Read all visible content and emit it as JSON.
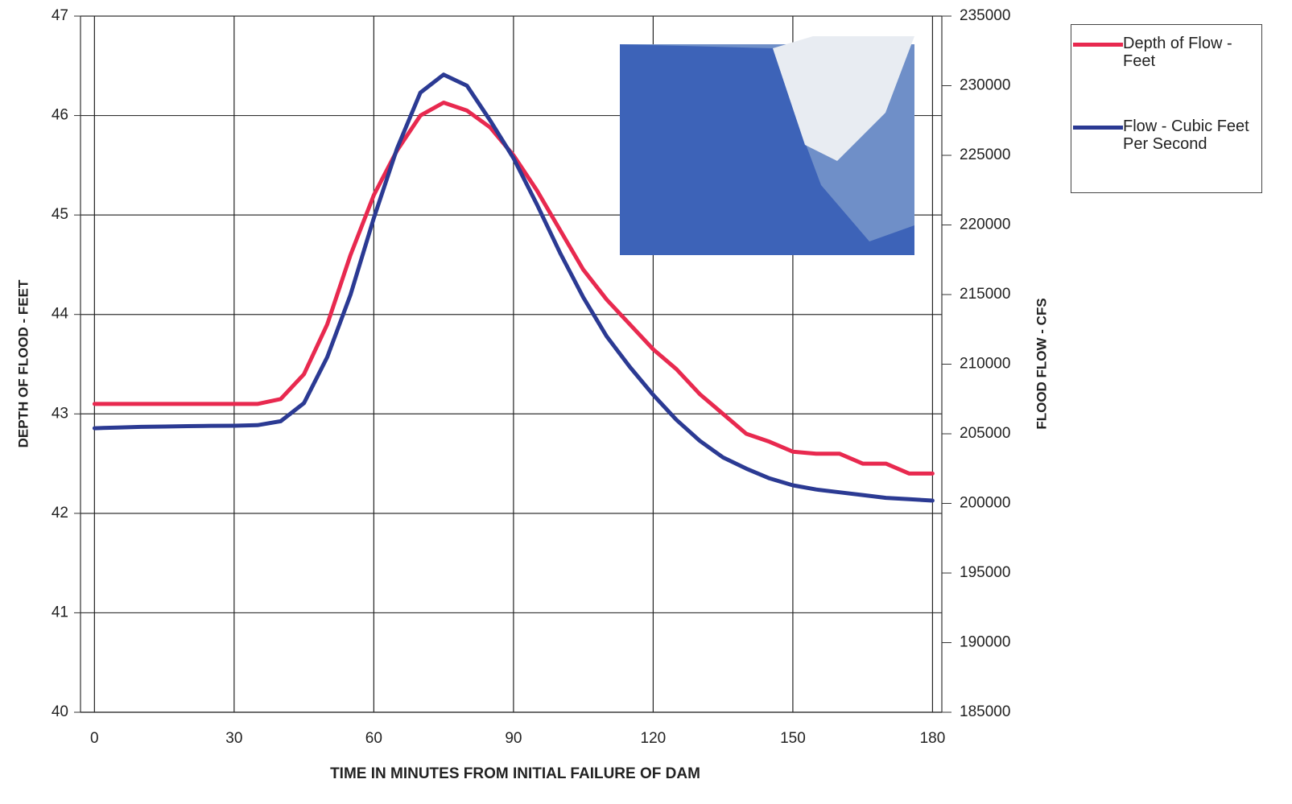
{
  "chart_data": {
    "type": "line",
    "xlabel": "TIME IN MINUTES FROM INITIAL FAILURE OF DAM",
    "ylabel": "DEPTH OF FLOOD - FEET",
    "y2label": "FLOOD FLOW - CFS",
    "x": [
      0,
      5,
      10,
      15,
      20,
      25,
      30,
      35,
      40,
      45,
      50,
      55,
      60,
      65,
      70,
      75,
      80,
      85,
      90,
      95,
      100,
      105,
      110,
      115,
      120,
      125,
      130,
      135,
      140,
      145,
      150,
      155,
      160,
      165,
      170,
      175,
      180
    ],
    "xlim": [
      -3,
      182
    ],
    "xticks": [
      0,
      30,
      60,
      90,
      120,
      150,
      180
    ],
    "ylim": [
      40,
      47
    ],
    "yticks": [
      40,
      41,
      42,
      43,
      44,
      45,
      46,
      47
    ],
    "y2lim": [
      185000,
      235000
    ],
    "y2ticks": [
      185000,
      190000,
      195000,
      200000,
      205000,
      210000,
      215000,
      220000,
      225000,
      230000,
      235000
    ],
    "grid": true,
    "legend": "right",
    "series": [
      {
        "name": "Depth of Flow - Feet",
        "color": "#e8294f",
        "values": [
          43.1,
          43.1,
          43.1,
          43.1,
          43.1,
          43.1,
          43.1,
          43.1,
          43.15,
          43.4,
          43.9,
          44.6,
          45.2,
          45.65,
          46.0,
          46.13,
          46.05,
          45.88,
          45.6,
          45.25,
          44.85,
          44.45,
          44.15,
          43.9,
          43.65,
          43.45,
          43.2,
          43.0,
          42.8,
          42.72,
          42.62,
          42.6,
          42.6,
          42.5,
          42.5,
          42.4,
          42.4
        ]
      },
      {
        "name": "Flow - Cubic Feet Per Second",
        "color": "#2b3a93",
        "axis": "y2",
        "values": [
          205400,
          205450,
          205500,
          205520,
          205550,
          205570,
          205580,
          205620,
          205900,
          207200,
          210500,
          215000,
          220500,
          225500,
          229500,
          230800,
          230000,
          227500,
          224800,
          221500,
          218000,
          214800,
          212000,
          209800,
          207800,
          206000,
          204500,
          203300,
          202500,
          201800,
          201300,
          201000,
          200800,
          200600,
          200400,
          200300,
          200200
        ]
      }
    ]
  }
}
